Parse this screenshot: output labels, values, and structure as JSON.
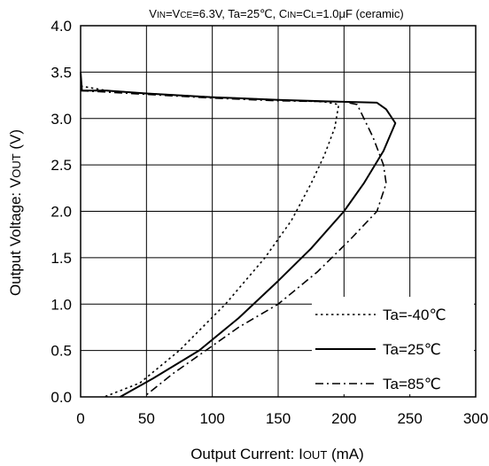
{
  "chart_data": {
    "type": "line",
    "title": "VIN=VCE=6.3V, Ta=25°C, CIN=CL=1.0μF (ceramic)",
    "title_parts": {
      "p1": "V",
      "p1s": "IN",
      "p2": "=V",
      "p2s": "CE",
      "p3": "=6.3V, Ta=25℃, C",
      "p3s": "IN",
      "p4": "=C",
      "p4s": "L",
      "p5": "=1.0μ",
      "p6": "F (ceramic)"
    },
    "xlabel": "Output Current: IOUT (mA)",
    "xlabel_parts": {
      "main": "Output Current: I",
      "sub": "OUT",
      "tail": " (mA)"
    },
    "ylabel": "Output Voltage: VOUT (V)",
    "ylabel_parts": {
      "main": "Output Voltage: V",
      "sub": "OUT",
      "tail": " (V)"
    },
    "xlim": [
      0,
      300
    ],
    "ylim": [
      0,
      4.0
    ],
    "x_ticks": [
      "0",
      "50",
      "100",
      "150",
      "200",
      "250",
      "300"
    ],
    "y_ticks": [
      "0.0",
      "0.5",
      "1.0",
      "1.5",
      "2.0",
      "2.5",
      "3.0",
      "3.5",
      "4.0"
    ],
    "grid": true,
    "legend_position": "bottom-right",
    "series": [
      {
        "name": "Ta=-40℃",
        "style": "dotted",
        "points": [
          [
            0,
            3.35
          ],
          [
            20,
            3.3
          ],
          [
            50,
            3.27
          ],
          [
            100,
            3.23
          ],
          [
            150,
            3.2
          ],
          [
            185,
            3.18
          ],
          [
            196,
            3.15
          ],
          [
            193,
            2.9
          ],
          [
            185,
            2.6
          ],
          [
            175,
            2.3
          ],
          [
            160,
            1.9
          ],
          [
            140,
            1.5
          ],
          [
            110,
            1.0
          ],
          [
            75,
            0.5
          ],
          [
            45,
            0.15
          ],
          [
            18,
            0.0
          ]
        ]
      },
      {
        "name": "Ta=25℃",
        "style": "solid",
        "points": [
          [
            0,
            3.5
          ],
          [
            1,
            3.3
          ],
          [
            20,
            3.3
          ],
          [
            50,
            3.27
          ],
          [
            100,
            3.23
          ],
          [
            150,
            3.2
          ],
          [
            200,
            3.18
          ],
          [
            225,
            3.17
          ],
          [
            232,
            3.1
          ],
          [
            239,
            2.95
          ],
          [
            230,
            2.65
          ],
          [
            215,
            2.3
          ],
          [
            200,
            2.0
          ],
          [
            175,
            1.6
          ],
          [
            150,
            1.25
          ],
          [
            120,
            0.85
          ],
          [
            90,
            0.5
          ],
          [
            55,
            0.2
          ],
          [
            30,
            0.0
          ]
        ]
      },
      {
        "name": "Ta=85℃",
        "style": "dashdot",
        "points": [
          [
            0,
            3.3
          ],
          [
            50,
            3.26
          ],
          [
            100,
            3.22
          ],
          [
            150,
            3.19
          ],
          [
            200,
            3.18
          ],
          [
            210,
            3.15
          ],
          [
            222,
            2.8
          ],
          [
            230,
            2.5
          ],
          [
            232,
            2.3
          ],
          [
            225,
            2.0
          ],
          [
            205,
            1.7
          ],
          [
            180,
            1.35
          ],
          [
            150,
            1.0
          ],
          [
            120,
            0.75
          ],
          [
            90,
            0.45
          ],
          [
            70,
            0.25
          ],
          [
            48,
            0.0
          ]
        ]
      }
    ],
    "colors": {
      "line": "#000000",
      "grid": "#000000",
      "background": "#ffffff"
    }
  }
}
